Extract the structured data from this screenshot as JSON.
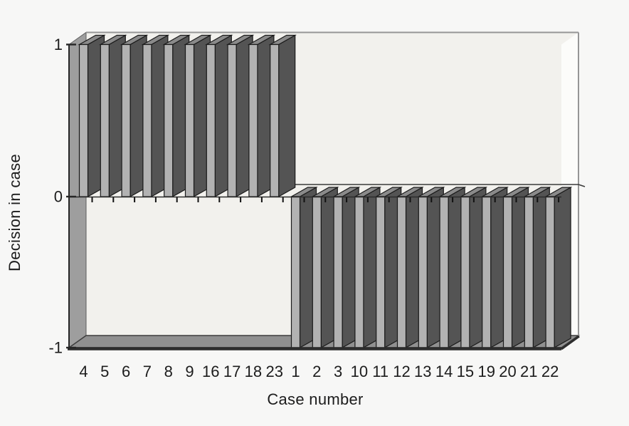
{
  "chart_data": {
    "type": "bar",
    "style": "3d-oblique-slabs",
    "title": "",
    "xlabel": "Case number",
    "ylabel": "Decision in case",
    "categories": [
      "4",
      "5",
      "6",
      "7",
      "8",
      "9",
      "16",
      "17",
      "18",
      "23",
      "1",
      "2",
      "3",
      "10",
      "11",
      "12",
      "13",
      "14",
      "15",
      "19",
      "20",
      "21",
      "22"
    ],
    "values": [
      1,
      1,
      1,
      1,
      1,
      1,
      1,
      1,
      1,
      1,
      -1,
      -1,
      -1,
      -1,
      -1,
      -1,
      -1,
      -1,
      -1,
      -1,
      -1,
      -1,
      -1
    ],
    "yticks": [
      "1",
      "0",
      "-1"
    ],
    "ylim": [
      -1,
      1
    ],
    "legend": "none",
    "grid": "zero-line-only",
    "colors": {
      "page_bg": "#f7f7f6",
      "back_wall": "#f2f1ed",
      "left_wall": "#9e9e9e",
      "right_wall": "#fcfcfa",
      "floor": "#909090",
      "bar_front": "#b2b2b2",
      "bar_side": "#545454",
      "bar_top": "#8a8a8a",
      "outline": "#1a1a1a",
      "box_edge": "#969696",
      "zero_line": "#2c2c2c",
      "axis": "#262626",
      "text": "#1c1c1c"
    }
  }
}
